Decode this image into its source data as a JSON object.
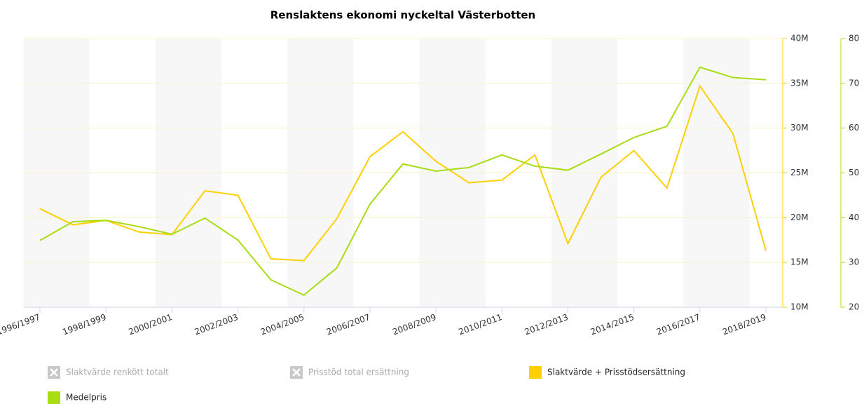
{
  "chart_data": {
    "type": "line",
    "title": "Renslaktens ekonomi nyckeltal Västerbotten",
    "categories": [
      "1996/1997",
      null,
      "1998/1999",
      null,
      "2000/2001",
      null,
      "2002/2003",
      null,
      "2004/2005",
      null,
      "2006/2007",
      null,
      "2008/2009",
      null,
      "2010/2011",
      null,
      "2012/2013",
      null,
      "2014/2015",
      null,
      "2016/2017",
      null,
      "2018/2019"
    ],
    "ylim": [
      10,
      40
    ],
    "yticks": [
      {
        "value": 10,
        "label": "10M"
      },
      {
        "value": 15,
        "label": "15M"
      },
      {
        "value": 20,
        "label": "20M"
      },
      {
        "value": 25,
        "label": "25M"
      },
      {
        "value": 30,
        "label": "30M"
      },
      {
        "value": 35,
        "label": "35M"
      },
      {
        "value": 40,
        "label": "40M"
      }
    ],
    "y2lim": [
      20,
      80
    ],
    "y2ticks": [
      20,
      30,
      40,
      50,
      60,
      70,
      80
    ],
    "grid": true,
    "series": [
      {
        "name": "Slaktvärde renkött totalt",
        "color": "#cccccc",
        "hidden": true
      },
      {
        "name": "Prisstöd total ersättning",
        "color": "#cccccc",
        "hidden": true
      },
      {
        "name": "Slaktvärde + Prisstödsersättning",
        "color": "#ffd000",
        "axis": "y",
        "values": [
          21.0,
          19.2,
          19.7,
          18.4,
          18.1,
          23.0,
          22.5,
          15.4,
          15.2,
          19.9,
          26.8,
          29.6,
          26.3,
          23.9,
          24.2,
          27.0,
          17.1,
          24.5,
          27.5,
          23.3,
          34.7,
          29.4,
          16.3
        ]
      },
      {
        "name": "Medelpris",
        "color": "#a8dc14",
        "axis": "y2",
        "values": [
          34.9,
          39.1,
          39.4,
          38.0,
          36.3,
          39.9,
          35.0,
          26.1,
          22.7,
          28.8,
          43.0,
          52.0,
          50.4,
          51.2,
          54.0,
          51.5,
          50.6,
          54.2,
          57.9,
          60.4,
          73.6,
          71.3,
          70.8
        ]
      }
    ]
  }
}
